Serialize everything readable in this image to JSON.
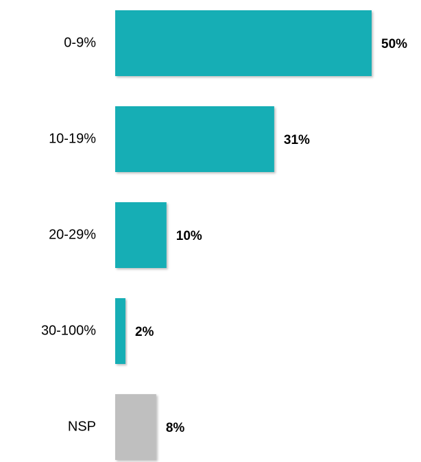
{
  "chart_data": {
    "type": "bar",
    "orientation": "horizontal",
    "categories": [
      "0-9%",
      "10-19%",
      "20-29%",
      "30-100%",
      "NSP"
    ],
    "values": [
      50,
      31,
      10,
      2,
      8
    ],
    "value_labels": [
      "50%",
      "31%",
      "10%",
      "2%",
      "8%"
    ],
    "colors": [
      "#14aeb5",
      "#14aeb5",
      "#14aeb5",
      "#14aeb5",
      "#bfbfbf"
    ]
  }
}
